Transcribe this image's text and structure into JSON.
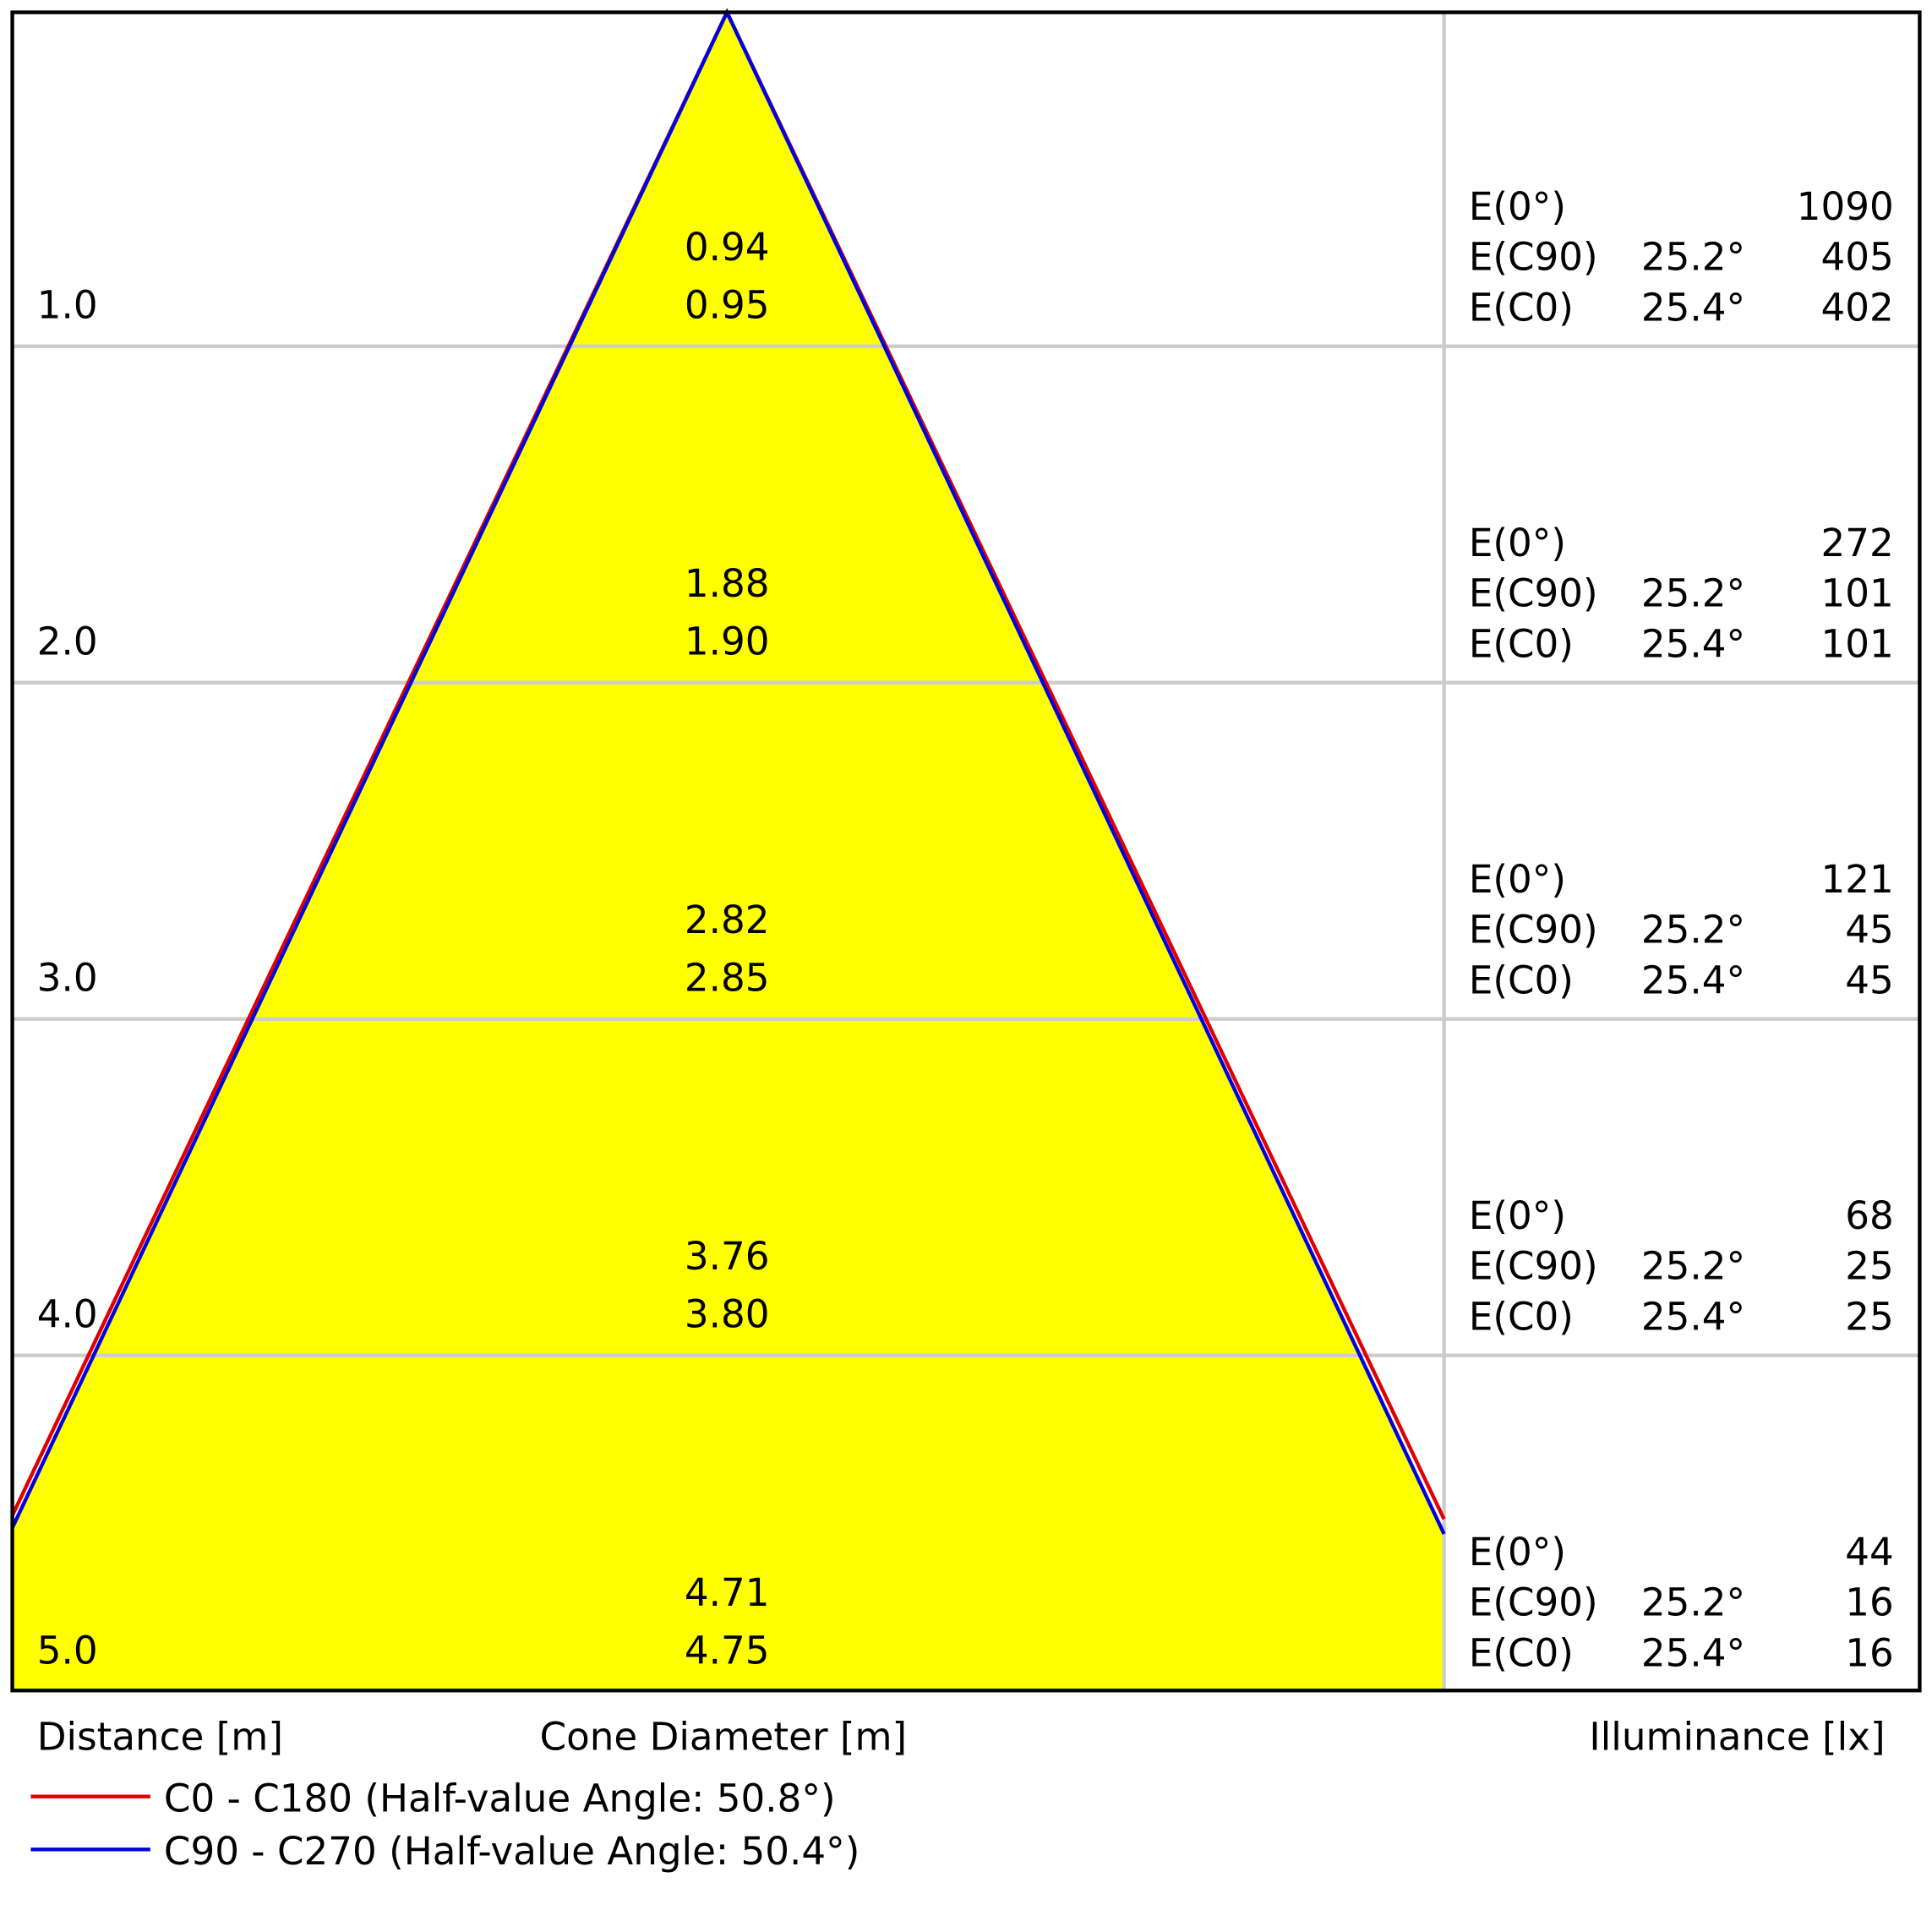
{
  "rows": [
    {
      "distance": "1.0",
      "diameters": [
        "0.94",
        "0.95"
      ],
      "illuminance": [
        {
          "label": "E(0°)",
          "value": "1090"
        },
        {
          "label": "E(C90)",
          "angle": "25.2°",
          "value": "405"
        },
        {
          "label": "E(C0)",
          "angle": "25.4°",
          "value": "402"
        }
      ]
    },
    {
      "distance": "2.0",
      "diameters": [
        "1.88",
        "1.90"
      ],
      "illuminance": [
        {
          "label": "E(0°)",
          "value": "272"
        },
        {
          "label": "E(C90)",
          "angle": "25.2°",
          "value": "101"
        },
        {
          "label": "E(C0)",
          "angle": "25.4°",
          "value": "101"
        }
      ]
    },
    {
      "distance": "3.0",
      "diameters": [
        "2.82",
        "2.85"
      ],
      "illuminance": [
        {
          "label": "E(0°)",
          "value": "121"
        },
        {
          "label": "E(C90)",
          "angle": "25.2°",
          "value": "45"
        },
        {
          "label": "E(C0)",
          "angle": "25.4°",
          "value": "45"
        }
      ]
    },
    {
      "distance": "4.0",
      "diameters": [
        "3.76",
        "3.80"
      ],
      "illuminance": [
        {
          "label": "E(0°)",
          "value": "68"
        },
        {
          "label": "E(C90)",
          "angle": "25.2°",
          "value": "25"
        },
        {
          "label": "E(C0)",
          "angle": "25.4°",
          "value": "25"
        }
      ]
    },
    {
      "distance": "5.0",
      "diameters": [
        "4.71",
        "4.75"
      ],
      "illuminance": [
        {
          "label": "E(0°)",
          "value": "44"
        },
        {
          "label": "E(C90)",
          "angle": "25.2°",
          "value": "16"
        },
        {
          "label": "E(C0)",
          "angle": "25.4°",
          "value": "16"
        }
      ]
    }
  ],
  "axis_labels": {
    "distance": "Distance [m]",
    "diameter": "Cone Diameter [m]",
    "illuminance": "Illuminance [lx]"
  },
  "legend": [
    {
      "label": "C0 - C180 (Half-value Angle: 50.8°)",
      "color": "#e00000"
    },
    {
      "label": "C90 - C270 (Half-value Angle: 50.4°)",
      "color": "#0000e0"
    }
  ]
}
